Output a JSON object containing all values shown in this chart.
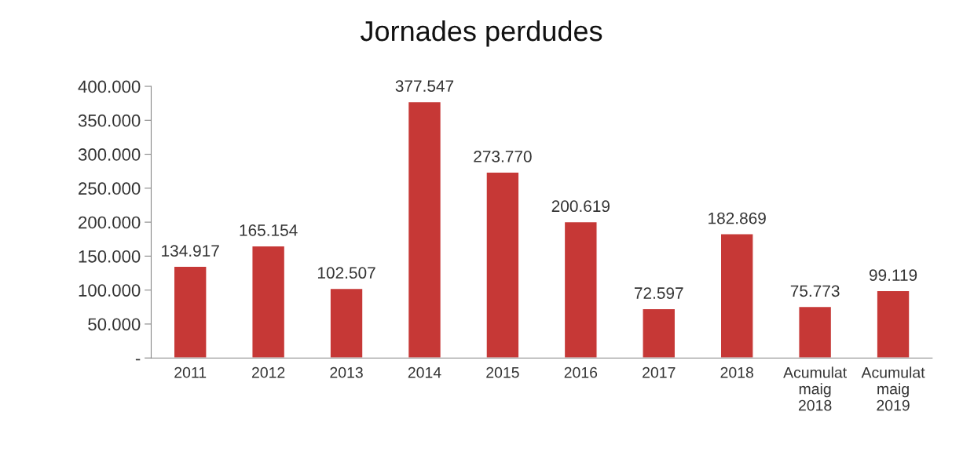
{
  "chart_data": {
    "type": "bar",
    "title": "Jornades perdudes",
    "categories": [
      "2011",
      "2012",
      "2013",
      "2014",
      "2015",
      "2016",
      "2017",
      "2018",
      "Acumulat\nmaig\n2018",
      "Acumulat\nmaig\n2019"
    ],
    "values": [
      134917,
      165154,
      102507,
      377547,
      273770,
      200619,
      72597,
      182869,
      75773,
      99119
    ],
    "value_labels": [
      "134.917",
      "165.154",
      "102.507",
      "377.547",
      "273.770",
      "200.619",
      "72.597",
      "182.869",
      "75.773",
      "99.119"
    ],
    "color": "#c63836",
    "ylim": [
      0,
      400000
    ],
    "yticks": [
      {
        "value": 0,
        "label": "-"
      },
      {
        "value": 50000,
        "label": "50.000"
      },
      {
        "value": 100000,
        "label": "100.000"
      },
      {
        "value": 150000,
        "label": "150.000"
      },
      {
        "value": 200000,
        "label": "200.000"
      },
      {
        "value": 250000,
        "label": "250.000"
      },
      {
        "value": 300000,
        "label": "300.000"
      },
      {
        "value": 350000,
        "label": "350.000"
      },
      {
        "value": 400000,
        "label": "400.000"
      }
    ],
    "grid": false,
    "legend": false
  }
}
